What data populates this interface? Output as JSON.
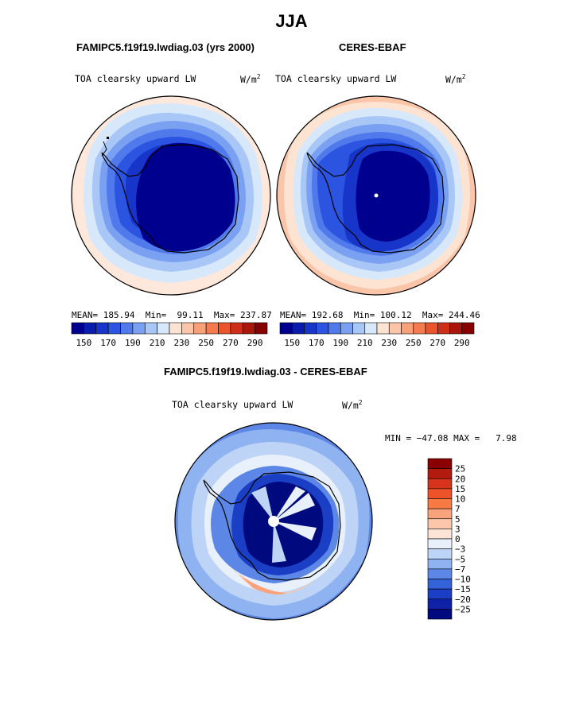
{
  "page_title": "JJA",
  "panels": [
    {
      "id": "model",
      "subtitle": "FAMIPC5.f19f19.lwdiag.03 (yrs 2000)",
      "left_title": "TOA clearsky upward LW",
      "units_base": "W/m",
      "units_exp": "2",
      "stats_mean": "MEAN= 185.94",
      "stats_min": "Min=  99.11",
      "stats_max": "Max= 237.87"
    },
    {
      "id": "obs",
      "subtitle": "CERES-EBAF",
      "left_title": "TOA clearsky upward LW",
      "units_base": "W/m",
      "units_exp": "2",
      "stats_mean": "MEAN= 192.68",
      "stats_min": "Min= 100.12",
      "stats_max": "Max= 244.46"
    },
    {
      "id": "diff",
      "subtitle": "FAMIPC5.f19f19.lwdiag.03 - CERES-EBAF",
      "left_title": "TOA clearsky upward LW",
      "units_base": "W/m",
      "units_exp": "2",
      "minmax": "MIN = −47.08 MAX =   7.98"
    }
  ],
  "chart_data": {
    "type": "heatmap",
    "projection": "south polar stereographic",
    "season": "JJA",
    "variable": "TOA clearsky upward LW",
    "units": "W/m^2",
    "abs_colorbar": {
      "levels": [
        150,
        160,
        170,
        180,
        190,
        200,
        210,
        220,
        230,
        240,
        250,
        260,
        270,
        280,
        290
      ],
      "tick_labels": [
        "150",
        "170",
        "190",
        "210",
        "230",
        "250",
        "270",
        "290"
      ],
      "colors": [
        "#00008f",
        "#0a1cab",
        "#1735c8",
        "#2b54e0",
        "#5079ec",
        "#7aa0f1",
        "#a8c6f6",
        "#d8e8fb",
        "#fde3d1",
        "#fbc5a9",
        "#f8a079",
        "#f37b4f",
        "#ea552e",
        "#cd2f19",
        "#a8160c",
        "#860000"
      ]
    },
    "diff_colorbar": {
      "levels": [
        -25,
        -20,
        -15,
        -10,
        -7,
        -5,
        -3,
        0,
        3,
        5,
        7,
        10,
        15,
        20,
        25
      ],
      "tick_labels": [
        "25",
        "20",
        "15",
        "10",
        "7",
        "5",
        "3",
        "0",
        "−3",
        "−5",
        "−7",
        "−10",
        "−15",
        "−20",
        "−25"
      ],
      "colors_top_to_bottom": [
        "#8a0000",
        "#b21b0e",
        "#d6341c",
        "#ee5228",
        "#f77a45",
        "#f9a37c",
        "#fbc6aa",
        "#fde4d6",
        "#e8f0fb",
        "#bdd4f6",
        "#8fb2f0",
        "#5c87e6",
        "#3462d8",
        "#1a3fc4",
        "#0d22a6",
        "#000a7f"
      ]
    },
    "fields": {
      "model": {
        "mean": 185.94,
        "min": 99.11,
        "max": 237.87
      },
      "obs": {
        "mean": 192.68,
        "min": 100.12,
        "max": 244.46
      },
      "diff": {
        "min": -47.08,
        "max": 7.98
      }
    }
  }
}
